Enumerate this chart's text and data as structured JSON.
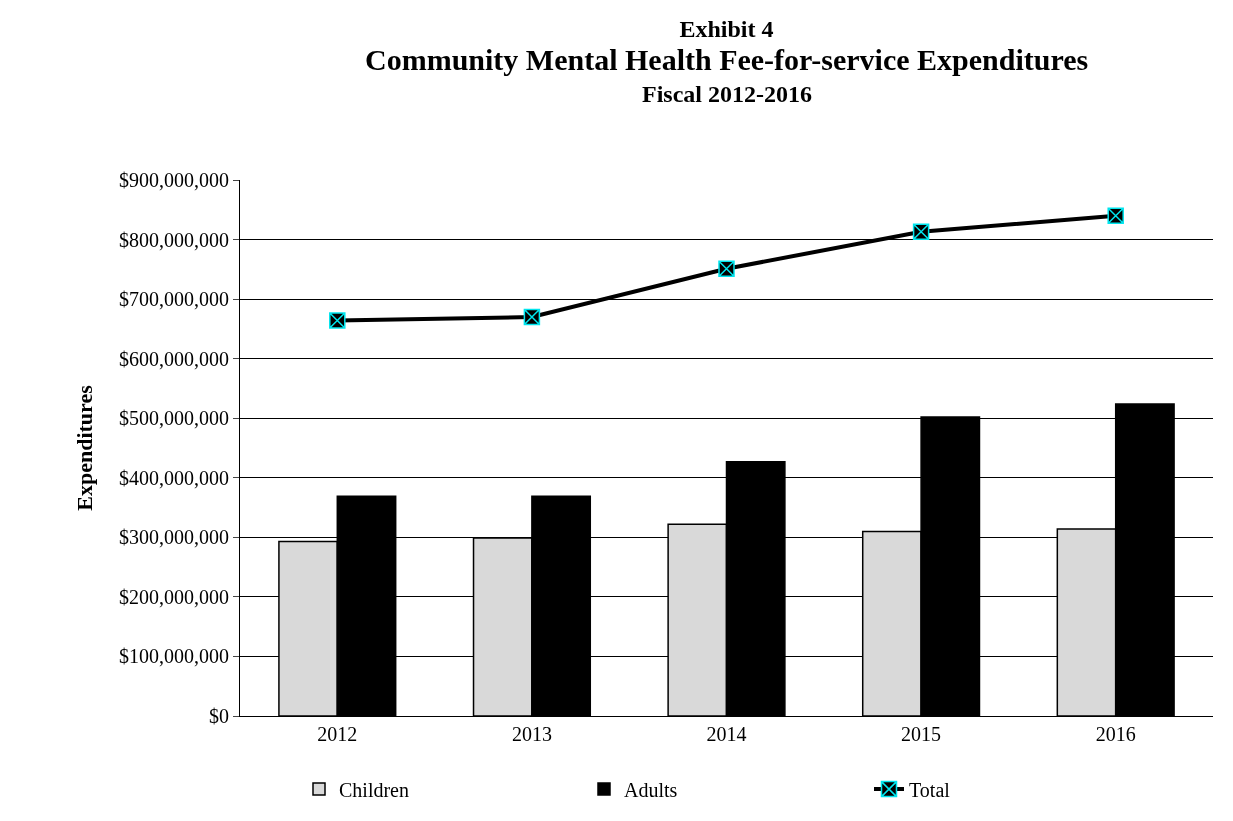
{
  "chart_data": {
    "type": "bar",
    "title": "Exhibit 4",
    "subtitle": "Community Mental Health Fee-for-service Expenditures",
    "annotations": [
      "Fiscal 2012-2016"
    ],
    "ylabel": "Expenditures",
    "categories": [
      "2012",
      "2013",
      "2014",
      "2015",
      "2016"
    ],
    "series": [
      {
        "name": "Children",
        "color": "#d9d9d9",
        "values": [
          293000000,
          299000000,
          322000000,
          310000000,
          314000000
        ]
      },
      {
        "name": "Adults",
        "color": "#000000",
        "values": [
          369000000,
          369000000,
          427000000,
          502000000,
          524000000
        ]
      },
      {
        "name": "Total",
        "type": "line",
        "color": "#000000",
        "marker": "cross",
        "values": [
          664000000,
          670000000,
          751000000,
          813000000,
          840000000
        ]
      }
    ],
    "ylim": [
      0,
      900000000
    ],
    "yticks": [
      {
        "value": 0,
        "label": "$0"
      },
      {
        "value": 100000000,
        "label": "$100,000,000"
      },
      {
        "value": 200000000,
        "label": "$200,000,000"
      },
      {
        "value": 300000000,
        "label": "$300,000,000"
      },
      {
        "value": 400000000,
        "label": "$400,000,000"
      },
      {
        "value": 500000000,
        "label": "$500,000,000"
      },
      {
        "value": 600000000,
        "label": "$600,000,000"
      },
      {
        "value": 700000000,
        "label": "$700,000,000"
      },
      {
        "value": 800000000,
        "label": "$800,000,000"
      },
      {
        "value": 900000000,
        "label": "$900,000,000"
      }
    ],
    "grid": "y",
    "legend": "bottom",
    "line_style": "solid"
  }
}
